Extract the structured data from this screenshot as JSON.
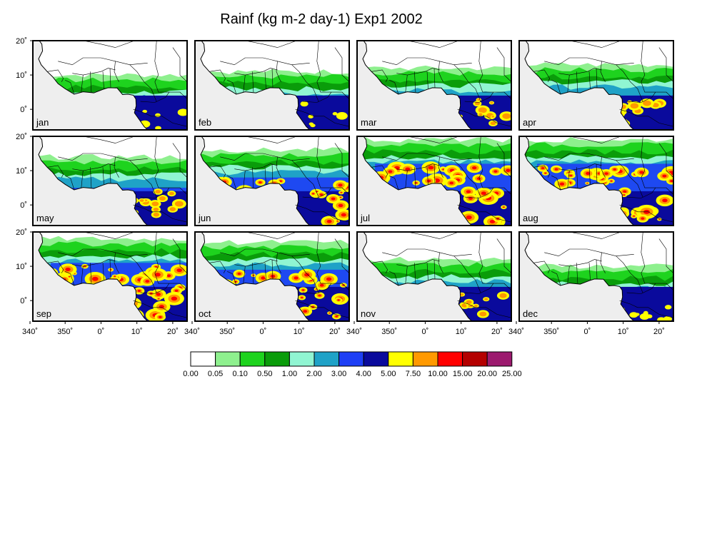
{
  "title": "Rainf (kg m-2 day-1) Exp1 2002",
  "map_data": {
    "type": "filled-contour-map-grid",
    "region": "West Africa",
    "lat_ticks": [
      "20˚",
      "10˚",
      "0˚"
    ],
    "lon_ticks": [
      "340˚",
      "350˚",
      "0˚",
      "10˚",
      "20˚"
    ],
    "panels": [
      {
        "label": "jan",
        "band": [
          -6,
          10
        ],
        "intensity": 1
      },
      {
        "label": "feb",
        "band": [
          -6,
          11
        ],
        "intensity": 1
      },
      {
        "label": "mar",
        "band": [
          -6,
          12
        ],
        "intensity": 2
      },
      {
        "label": "apr",
        "band": [
          -6,
          13
        ],
        "intensity": 2
      },
      {
        "label": "may",
        "band": [
          -2,
          14
        ],
        "intensity": 2
      },
      {
        "label": "jun",
        "band": [
          0,
          16
        ],
        "intensity": 3
      },
      {
        "label": "jul",
        "band": [
          4,
          19
        ],
        "intensity": 4
      },
      {
        "label": "aug",
        "band": [
          4,
          19
        ],
        "intensity": 4
      },
      {
        "label": "sep",
        "band": [
          2,
          18
        ],
        "intensity": 4
      },
      {
        "label": "oct",
        "band": [
          -2,
          17
        ],
        "intensity": 3
      },
      {
        "label": "nov",
        "band": [
          -6,
          12
        ],
        "intensity": 2
      },
      {
        "label": "dec",
        "band": [
          -6,
          10
        ],
        "intensity": 1
      }
    ],
    "colorbar": {
      "colors": [
        "#ffffff",
        "#8ef08e",
        "#1ed31e",
        "#0a9c0a",
        "#90f5d2",
        "#1fa2c7",
        "#1e3ff5",
        "#0a0a9c",
        "#ffff00",
        "#ff9900",
        "#ff0000",
        "#b40000",
        "#9c1a6e"
      ],
      "labels": [
        "0.00",
        "0.05",
        "0.10",
        "0.50",
        "1.00",
        "2.00",
        "3.00",
        "4.00",
        "5.00",
        "7.50",
        "10.00",
        "15.00",
        "20.00",
        "25.00"
      ]
    },
    "colors": {
      "land": "#ffffff",
      "ocean": "#eeeeee",
      "border": "#000000"
    }
  }
}
